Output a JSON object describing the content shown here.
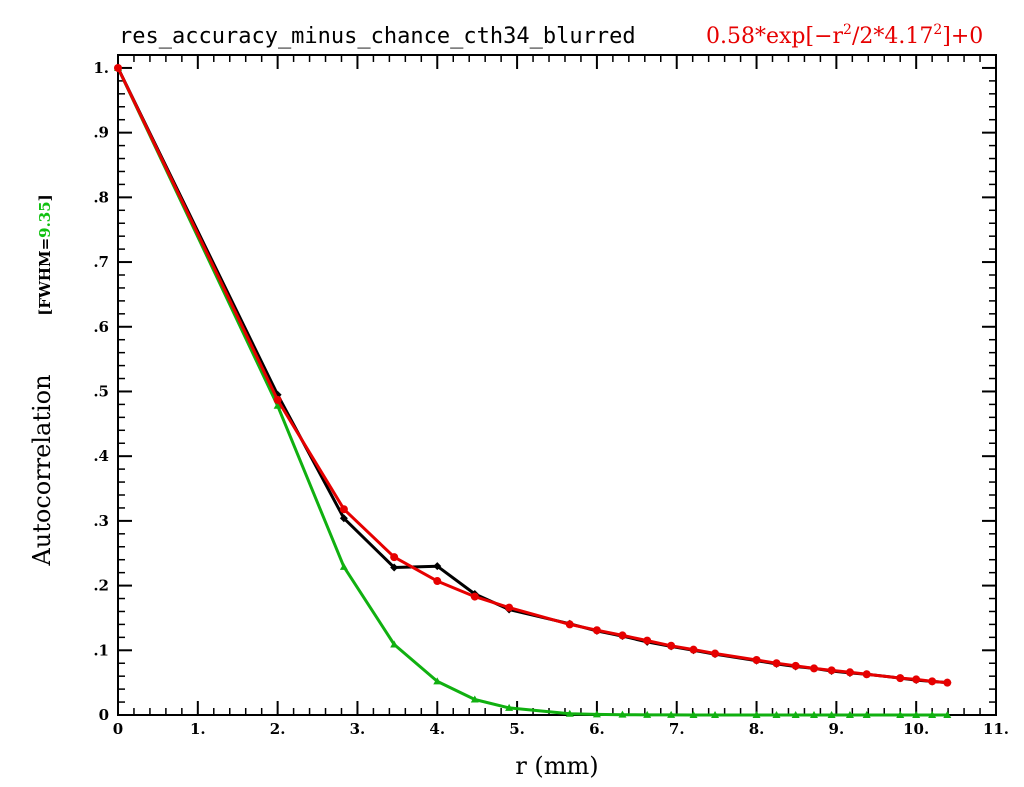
{
  "chart_data": {
    "type": "line",
    "title": "res_accuracy_minus_chance_cth34_blurred",
    "formula": {
      "coef": "0.58",
      "op1": "*exp[−r",
      "sup1": "2",
      "mid": "/2*4.17",
      "sup2": "2",
      "tail": "]+0"
    },
    "xlabel": "r (mm)",
    "ylabel": "Autocorrelation",
    "fwhm": {
      "open": "[FWHM=",
      "value": "9.35",
      "close": "]"
    },
    "xlim": [
      0,
      11
    ],
    "ylim": [
      0,
      1.02
    ],
    "x_ticks": [
      {
        "v": 0,
        "label": "0"
      },
      {
        "v": 1,
        "label": "1."
      },
      {
        "v": 2,
        "label": "2."
      },
      {
        "v": 3,
        "label": "3."
      },
      {
        "v": 4,
        "label": "4."
      },
      {
        "v": 5,
        "label": "5."
      },
      {
        "v": 6,
        "label": "6."
      },
      {
        "v": 7,
        "label": "7."
      },
      {
        "v": 8,
        "label": "8."
      },
      {
        "v": 9,
        "label": "9."
      },
      {
        "v": 10,
        "label": "10."
      },
      {
        "v": 11,
        "label": "11."
      }
    ],
    "y_ticks": [
      {
        "v": 0,
        "label": "0"
      },
      {
        "v": 0.1,
        "label": ".1"
      },
      {
        "v": 0.2,
        "label": ".2"
      },
      {
        "v": 0.3,
        "label": ".3"
      },
      {
        "v": 0.4,
        "label": ".4"
      },
      {
        "v": 0.5,
        "label": ".5"
      },
      {
        "v": 0.6,
        "label": ".6"
      },
      {
        "v": 0.7,
        "label": ".7"
      },
      {
        "v": 0.8,
        "label": ".8"
      },
      {
        "v": 0.9,
        "label": ".9"
      },
      {
        "v": 1.0,
        "label": "1."
      }
    ],
    "grid": false,
    "series": [
      {
        "color": "#000000",
        "marker": "diamond",
        "x": [
          0,
          2,
          2.83,
          3.46,
          4,
          4.47,
          4.9,
          5.66,
          6,
          6.32,
          6.63,
          6.93,
          7.21,
          7.48,
          8,
          8.25,
          8.49,
          8.72,
          8.94,
          9.17,
          9.38,
          9.8,
          10,
          10.2,
          10.39
        ],
        "y": [
          1.0,
          0.495,
          0.304,
          0.228,
          0.23,
          0.187,
          0.163,
          0.141,
          0.13,
          0.122,
          0.113,
          0.106,
          0.1,
          0.094,
          0.084,
          0.079,
          0.075,
          0.072,
          0.068,
          0.065,
          0.063,
          0.057,
          0.054,
          0.052,
          0.05
        ]
      },
      {
        "color": "#e60000",
        "marker": "circle",
        "x": [
          0,
          2,
          2.83,
          3.46,
          4,
          4.47,
          4.9,
          5.66,
          6,
          6.32,
          6.63,
          6.93,
          7.21,
          7.48,
          8,
          8.25,
          8.49,
          8.72,
          8.94,
          9.17,
          9.38,
          9.8,
          10,
          10.2,
          10.39
        ],
        "y": [
          1.0,
          0.487,
          0.318,
          0.244,
          0.207,
          0.183,
          0.166,
          0.14,
          0.131,
          0.123,
          0.115,
          0.107,
          0.101,
          0.095,
          0.085,
          0.08,
          0.076,
          0.072,
          0.069,
          0.066,
          0.063,
          0.057,
          0.055,
          0.052,
          0.05
        ]
      },
      {
        "color": "#10b010",
        "marker": "triangle",
        "x": [
          0,
          2,
          2.83,
          3.46,
          4,
          4.47,
          4.9,
          5.66,
          6,
          6.32,
          6.63,
          6.93,
          7.21,
          7.48,
          8,
          8.25,
          8.49,
          8.72,
          8.94,
          9.17,
          9.38,
          9.8,
          10,
          10.2,
          10.39
        ],
        "y": [
          1.0,
          0.478,
          0.229,
          0.109,
          0.052,
          0.024,
          0.011,
          0.002,
          0.001,
          0.0005,
          0.0002,
          0.0001,
          0,
          0,
          0,
          0,
          0,
          0,
          0,
          0,
          0,
          0,
          0,
          0,
          0
        ]
      }
    ]
  }
}
